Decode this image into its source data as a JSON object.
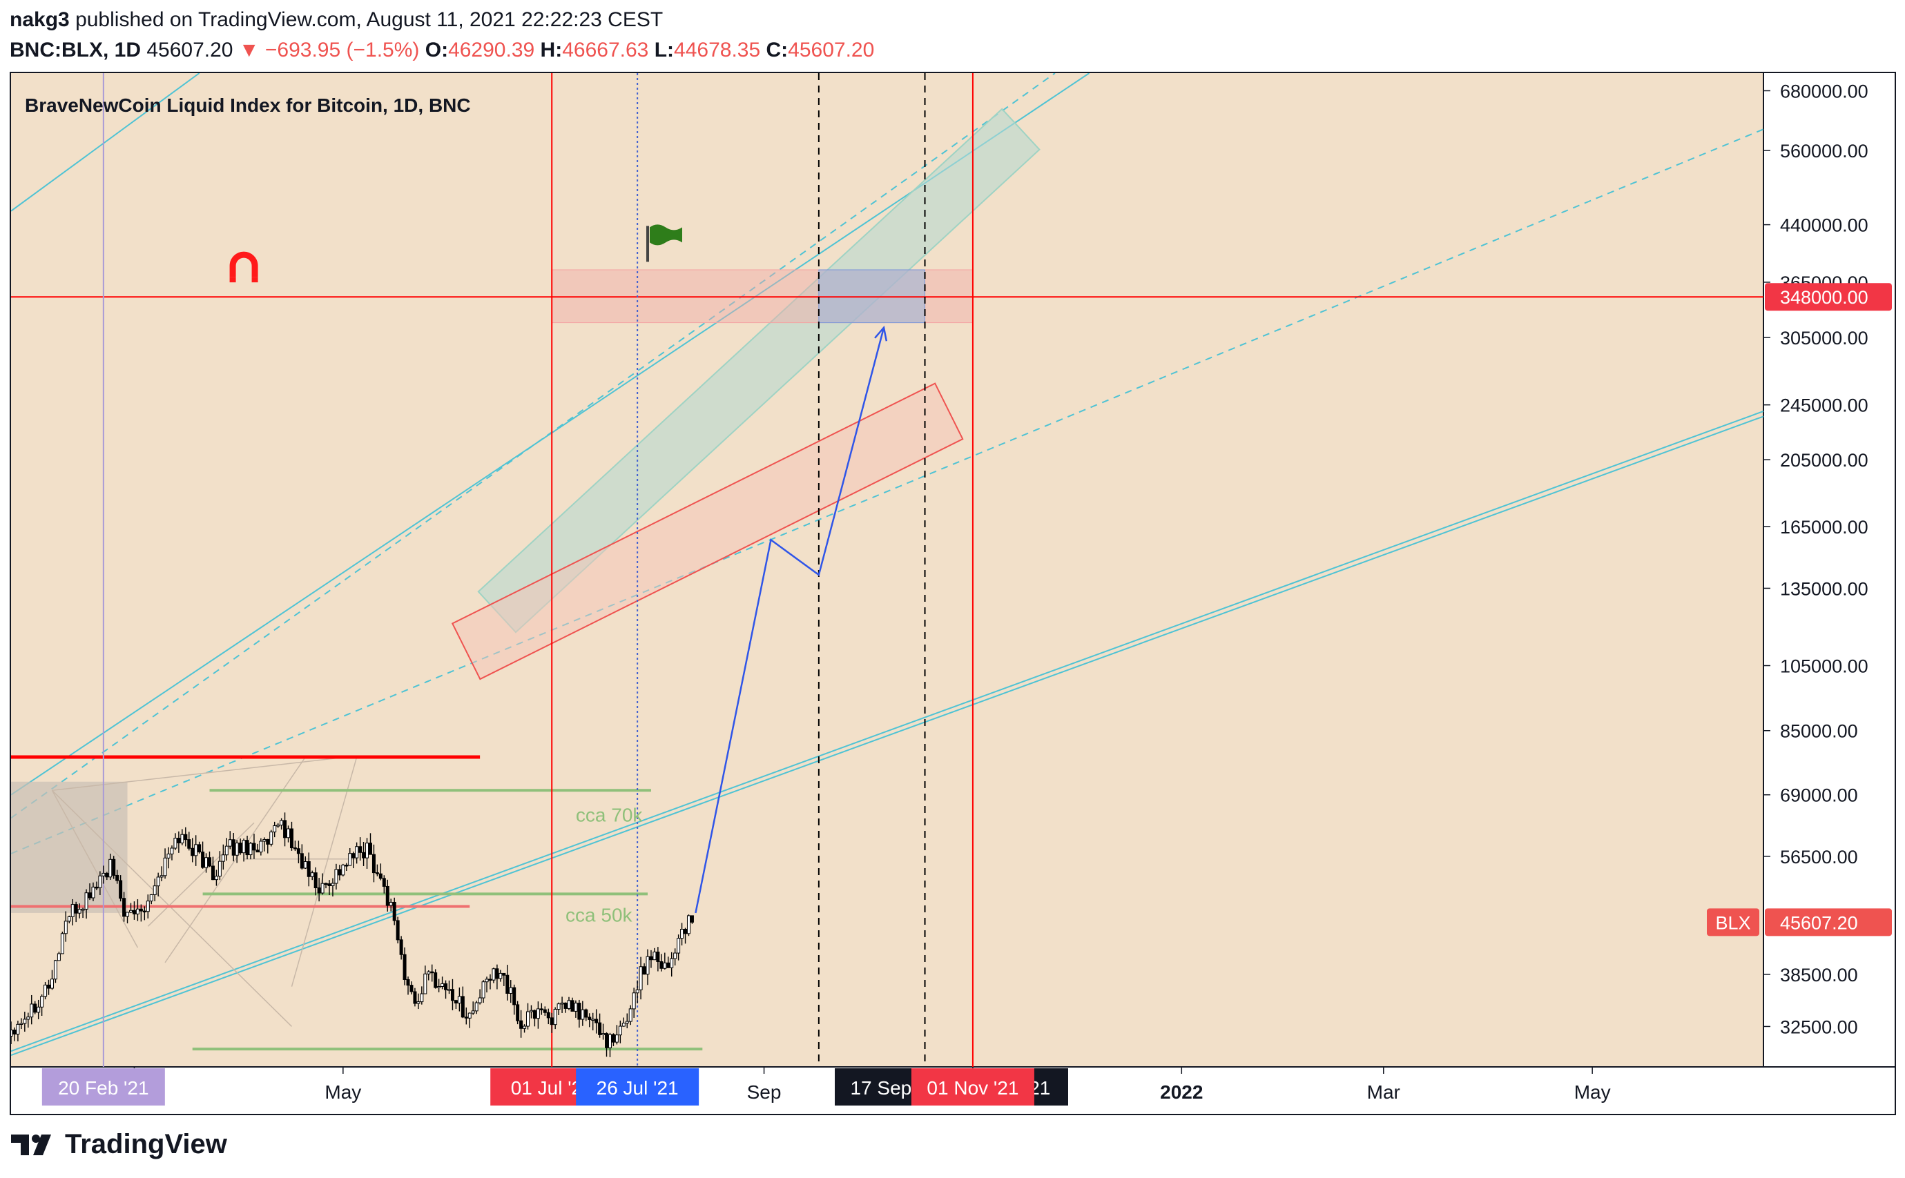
{
  "header": {
    "publisher": "nakg3",
    "published_text": "published on TradingView.com, August 11, 2021 22:22:23 CEST",
    "symbol": "BNC:BLX, 1D",
    "last": "45607.20",
    "change": "−693.95 (−1.5%)",
    "open_label": "O:",
    "open": "46290.39",
    "high_label": "H:",
    "high": "46667.63",
    "low_label": "L:",
    "low": "44678.35",
    "close_label": "C:",
    "close": "45607.20"
  },
  "colors": {
    "background": "#f2e0c9",
    "candle": "#000000",
    "red_line": "#ff0000",
    "teal": "#4fc3d4",
    "blue_path": "#2f55e8",
    "green_level": "#8fc07a",
    "price_tag_red": "#f23645",
    "date_tag_blue": "#2962ff",
    "date_tag_lavender": "#b39ddb"
  },
  "chart_data": {
    "type": "candlestick",
    "title": "BraveNewCoin Liquid Index for Bitcoin, 1D, BNC",
    "y_scale": "log",
    "ylim": [
      28500,
      720000
    ],
    "y_ticks": [
      32500,
      38500,
      56500,
      69000,
      85000,
      105000,
      135000,
      165000,
      205000,
      245000,
      305000,
      365000,
      440000,
      560000,
      680000
    ],
    "y_tick_labels": [
      "32500.00",
      "38500.00",
      "56500.00",
      "69000.00",
      "85000.00",
      "105000.00",
      "135000.00",
      "165000.00",
      "205000.00",
      "245000.00",
      "305000.00",
      "365000.00",
      "440000.00",
      "560000.00",
      "680000.00"
    ],
    "x_range": [
      "2021-01-24",
      "2022-06-20"
    ],
    "x_ticks": [
      {
        "date": "2021-03-01",
        "label": "Mar"
      },
      {
        "date": "2021-05-01",
        "label": "May"
      },
      {
        "date": "2021-09-01",
        "label": "Sep"
      },
      {
        "date": "2021-11-01",
        "label": "Nov '21"
      },
      {
        "date": "2022-01-01",
        "label": "2022"
      },
      {
        "date": "2022-03-01",
        "label": "Mar"
      },
      {
        "date": "2022-05-01",
        "label": "May"
      }
    ],
    "date_tags": [
      {
        "date": "2021-02-20",
        "label": "20 Feb '21",
        "color": "#b39ddb"
      },
      {
        "date": "2021-07-01",
        "label": "01 Jul '21",
        "color": "#f23645"
      },
      {
        "date": "2021-07-26",
        "label": "26 Jul '21",
        "color": "#2962ff"
      },
      {
        "date": "2021-09-17",
        "label": "17 Sep '21",
        "color": "#131722"
      },
      {
        "date": "2021-10-18",
        "label": "18 Oct '21",
        "color": "#131722"
      },
      {
        "date": "2021-11-01",
        "label": "01 Nov '21",
        "color": "#f23645"
      }
    ],
    "price_tags": [
      {
        "value": 348000,
        "label": "348000.00",
        "color": "#f23645"
      },
      {
        "value": 45607.2,
        "label": "45607.20",
        "symbol": "BLX",
        "color": "#ef5350"
      }
    ],
    "annotations": [
      {
        "text": "cca 70k",
        "value": 70000
      },
      {
        "text": "cca 50k",
        "value": 50000
      }
    ],
    "closes": [
      {
        "d": "2021-01-24",
        "c": 32300
      },
      {
        "d": "2021-01-30",
        "c": 34500
      },
      {
        "d": "2021-02-05",
        "c": 38000
      },
      {
        "d": "2021-02-09",
        "c": 46000
      },
      {
        "d": "2021-02-14",
        "c": 48500
      },
      {
        "d": "2021-02-19",
        "c": 52500
      },
      {
        "d": "2021-02-22",
        "c": 54500
      },
      {
        "d": "2021-02-27",
        "c": 46000
      },
      {
        "d": "2021-03-04",
        "c": 48500
      },
      {
        "d": "2021-03-09",
        "c": 54000
      },
      {
        "d": "2021-03-14",
        "c": 60500
      },
      {
        "d": "2021-03-19",
        "c": 57500
      },
      {
        "d": "2021-03-24",
        "c": 53500
      },
      {
        "d": "2021-03-29",
        "c": 58000
      },
      {
        "d": "2021-04-03",
        "c": 58500
      },
      {
        "d": "2021-04-09",
        "c": 58500
      },
      {
        "d": "2021-04-13",
        "c": 63000
      },
      {
        "d": "2021-04-18",
        "c": 56500
      },
      {
        "d": "2021-04-24",
        "c": 50500
      },
      {
        "d": "2021-04-29",
        "c": 53500
      },
      {
        "d": "2021-05-04",
        "c": 56500
      },
      {
        "d": "2021-05-08",
        "c": 58000
      },
      {
        "d": "2021-05-12",
        "c": 52500
      },
      {
        "d": "2021-05-16",
        "c": 46500
      },
      {
        "d": "2021-05-19",
        "c": 38000
      },
      {
        "d": "2021-05-22",
        "c": 35000
      },
      {
        "d": "2021-05-26",
        "c": 38500
      },
      {
        "d": "2021-06-01",
        "c": 36500
      },
      {
        "d": "2021-06-07",
        "c": 33500
      },
      {
        "d": "2021-06-12",
        "c": 37500
      },
      {
        "d": "2021-06-16",
        "c": 39500
      },
      {
        "d": "2021-06-22",
        "c": 32500
      },
      {
        "d": "2021-06-27",
        "c": 34500
      },
      {
        "d": "2021-07-01",
        "c": 33500
      },
      {
        "d": "2021-07-06",
        "c": 34800
      },
      {
        "d": "2021-07-12",
        "c": 33200
      },
      {
        "d": "2021-07-19",
        "c": 30500
      },
      {
        "d": "2021-07-23",
        "c": 33500
      },
      {
        "d": "2021-07-26",
        "c": 37500
      },
      {
        "d": "2021-07-30",
        "c": 41500
      },
      {
        "d": "2021-08-04",
        "c": 39500
      },
      {
        "d": "2021-08-08",
        "c": 44500
      },
      {
        "d": "2021-08-11",
        "c": 45607
      }
    ]
  }
}
